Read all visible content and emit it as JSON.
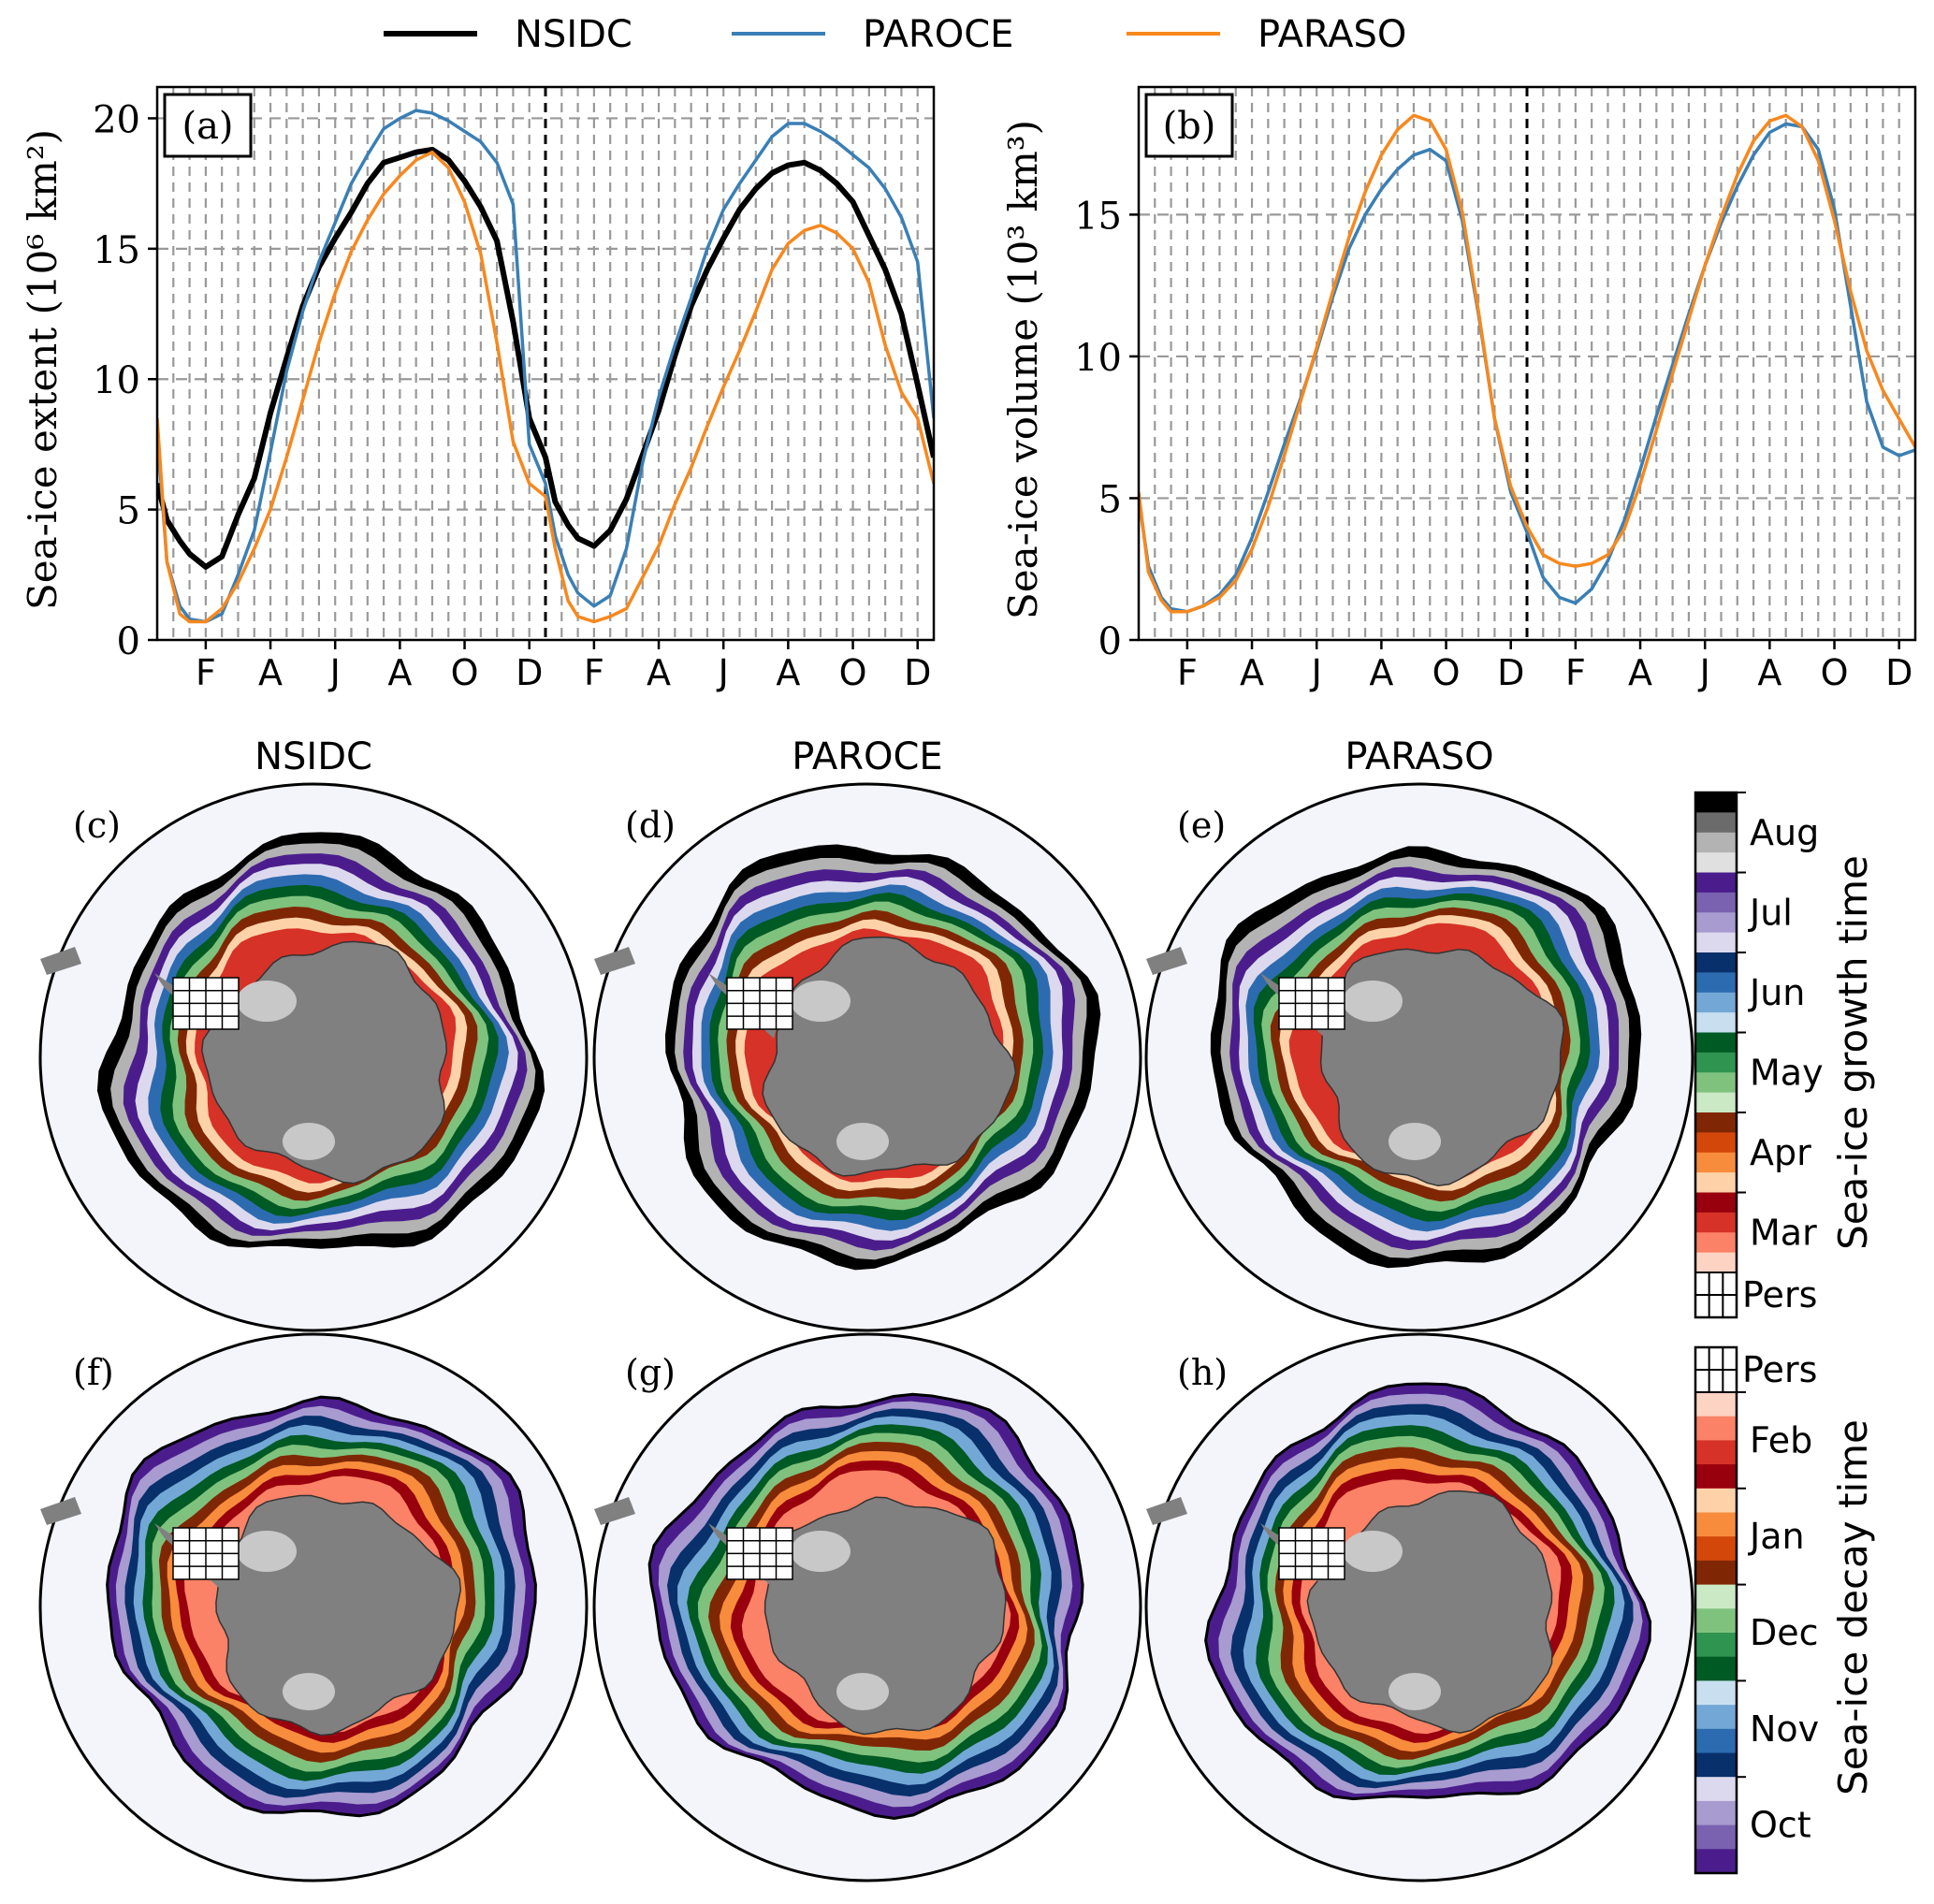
{
  "legend": [
    {
      "name": "NSIDC",
      "color": "#000000"
    },
    {
      "name": "PAROCE",
      "color": "#3a7fb5"
    },
    {
      "name": "PARASO",
      "color": "#f7881e"
    }
  ],
  "chart_data": [
    {
      "type": "line",
      "panel_label": "(a)",
      "ylabel": "Sea-ice extent (10⁶ km²)",
      "ylim": [
        0,
        21.2
      ],
      "yticks": [
        0,
        5,
        10,
        15,
        20
      ],
      "xlim": [
        0,
        24
      ],
      "xticks": [
        {
          "x": 1.5,
          "label": "F"
        },
        {
          "x": 3.5,
          "label": "A"
        },
        {
          "x": 5.5,
          "label": "J"
        },
        {
          "x": 7.5,
          "label": "A"
        },
        {
          "x": 9.5,
          "label": "O"
        },
        {
          "x": 11.5,
          "label": "D"
        },
        {
          "x": 13.5,
          "label": "F"
        },
        {
          "x": 15.5,
          "label": "A"
        },
        {
          "x": 17.5,
          "label": "J"
        },
        {
          "x": 19.5,
          "label": "A"
        },
        {
          "x": 21.5,
          "label": "O"
        },
        {
          "x": 23.5,
          "label": "D"
        }
      ],
      "grid": true,
      "year_divider": 12,
      "series": [
        {
          "name": "NSIDC",
          "x": [
            0,
            0.3,
            0.7,
            1,
            1.5,
            2,
            2.5,
            3,
            3.5,
            4,
            4.5,
            5,
            5.5,
            6,
            6.5,
            7,
            7.5,
            8,
            8.5,
            9,
            9.5,
            10,
            10.5,
            11,
            11.5,
            12,
            12.3,
            12.7,
            13,
            13.5,
            14,
            14.5,
            15,
            15.5,
            16,
            16.5,
            17,
            17.5,
            18,
            18.5,
            19,
            19.5,
            20,
            20.5,
            21,
            21.5,
            22,
            22.5,
            23,
            23.5,
            24
          ],
          "values": [
            6.0,
            4.6,
            3.8,
            3.3,
            2.8,
            3.2,
            4.8,
            6.2,
            8.7,
            10.8,
            12.8,
            14.3,
            15.4,
            16.4,
            17.5,
            18.3,
            18.5,
            18.7,
            18.8,
            18.4,
            17.6,
            16.6,
            15.3,
            12.2,
            8.5,
            7.0,
            5.3,
            4.4,
            3.9,
            3.6,
            4.2,
            5.4,
            7.1,
            8.8,
            10.9,
            12.8,
            14.2,
            15.4,
            16.5,
            17.3,
            17.9,
            18.2,
            18.3,
            18.0,
            17.5,
            16.8,
            15.5,
            14.2,
            12.5,
            9.8,
            7.0
          ]
        },
        {
          "name": "PAROCE",
          "x": [
            0,
            0.3,
            0.7,
            1,
            1.5,
            2,
            2.5,
            3,
            3.5,
            4,
            4.5,
            5,
            5.5,
            6,
            6.5,
            7,
            7.5,
            8,
            8.5,
            9,
            9.5,
            10,
            10.5,
            11,
            11.5,
            12,
            12.3,
            12.7,
            13,
            13.5,
            14,
            14.5,
            15,
            15.5,
            16,
            16.5,
            17,
            17.5,
            18,
            18.5,
            19,
            19.5,
            20,
            20.5,
            21,
            21.5,
            22,
            22.5,
            23,
            23.5,
            24
          ],
          "values": [
            8.0,
            3.0,
            1.3,
            0.8,
            0.7,
            1.0,
            2.5,
            4.2,
            7.2,
            10.3,
            12.6,
            14.5,
            16.0,
            17.5,
            18.6,
            19.6,
            20.0,
            20.3,
            20.2,
            19.9,
            19.5,
            19.1,
            18.3,
            16.7,
            7.5,
            6.0,
            4.0,
            2.5,
            1.8,
            1.3,
            1.7,
            3.5,
            6.8,
            9.3,
            11.3,
            13.1,
            15.0,
            16.5,
            17.5,
            18.4,
            19.3,
            19.8,
            19.8,
            19.5,
            19.1,
            18.6,
            18.1,
            17.3,
            16.2,
            14.5,
            8.5
          ]
        },
        {
          "name": "PARASO",
          "x": [
            0,
            0.3,
            0.7,
            1,
            1.5,
            2,
            2.5,
            3,
            3.5,
            4,
            4.5,
            5,
            5.5,
            6,
            6.5,
            7,
            7.5,
            8,
            8.5,
            9,
            9.5,
            10,
            10.5,
            11,
            11.5,
            12,
            12.3,
            12.7,
            13,
            13.5,
            14,
            14.5,
            15,
            15.5,
            16,
            16.5,
            17,
            17.5,
            18,
            18.5,
            19,
            19.5,
            20,
            20.5,
            21,
            21.5,
            22,
            22.5,
            23,
            23.5,
            24
          ],
          "values": [
            8.5,
            3.0,
            1.0,
            0.7,
            0.7,
            1.2,
            2.2,
            3.5,
            5.0,
            7.0,
            9.2,
            11.4,
            13.3,
            14.9,
            16.1,
            17.1,
            17.8,
            18.4,
            18.7,
            18.1,
            16.8,
            14.8,
            11.4,
            7.6,
            6.0,
            5.5,
            3.5,
            1.5,
            0.9,
            0.7,
            0.9,
            1.2,
            2.4,
            3.6,
            5.2,
            6.6,
            8.2,
            9.7,
            11.1,
            12.6,
            14.2,
            15.2,
            15.7,
            15.9,
            15.6,
            15.0,
            13.7,
            11.3,
            9.5,
            8.5,
            6.0
          ]
        }
      ]
    },
    {
      "type": "line",
      "panel_label": "(b)",
      "ylabel": "Sea-ice volume (10³ km³)",
      "ylim": [
        0,
        19.5
      ],
      "yticks": [
        0,
        5,
        10,
        15
      ],
      "xlim": [
        0,
        24
      ],
      "xticks": [
        {
          "x": 1.5,
          "label": "F"
        },
        {
          "x": 3.5,
          "label": "A"
        },
        {
          "x": 5.5,
          "label": "J"
        },
        {
          "x": 7.5,
          "label": "A"
        },
        {
          "x": 9.5,
          "label": "O"
        },
        {
          "x": 11.5,
          "label": "D"
        },
        {
          "x": 13.5,
          "label": "F"
        },
        {
          "x": 15.5,
          "label": "A"
        },
        {
          "x": 17.5,
          "label": "J"
        },
        {
          "x": 19.5,
          "label": "A"
        },
        {
          "x": 21.5,
          "label": "O"
        },
        {
          "x": 23.5,
          "label": "D"
        }
      ],
      "grid": true,
      "year_divider": 12,
      "series": [
        {
          "name": "PAROCE",
          "x": [
            0,
            0.3,
            0.7,
            1,
            1.5,
            2,
            2.5,
            3,
            3.5,
            4,
            4.5,
            5,
            5.5,
            6,
            6.5,
            7,
            7.5,
            8,
            8.5,
            9,
            9.5,
            10,
            10.5,
            11,
            11.5,
            12,
            12.5,
            13,
            13.5,
            14,
            14.5,
            15,
            15.5,
            16,
            16.5,
            17,
            17.5,
            18,
            18.5,
            19,
            19.5,
            20,
            20.5,
            21,
            21.5,
            22,
            22.5,
            23,
            23.5,
            24
          ],
          "values": [
            5.0,
            2.6,
            1.5,
            1.1,
            1.0,
            1.2,
            1.6,
            2.3,
            3.6,
            5.2,
            6.9,
            8.5,
            10.2,
            12.1,
            13.8,
            15.0,
            15.9,
            16.6,
            17.1,
            17.3,
            16.9,
            14.8,
            11.5,
            7.8,
            5.2,
            3.8,
            2.2,
            1.5,
            1.3,
            1.8,
            2.8,
            4.2,
            6.0,
            7.9,
            9.7,
            11.5,
            13.2,
            14.7,
            16.0,
            17.1,
            17.9,
            18.2,
            18.1,
            17.3,
            15.2,
            11.8,
            8.4,
            6.8,
            6.5,
            6.7
          ]
        },
        {
          "name": "PARASO",
          "x": [
            0,
            0.3,
            0.7,
            1,
            1.5,
            2,
            2.5,
            3,
            3.5,
            4,
            4.5,
            5,
            5.5,
            6,
            6.5,
            7,
            7.5,
            8,
            8.5,
            9,
            9.5,
            10,
            10.5,
            11,
            11.5,
            12,
            12.5,
            13,
            13.5,
            14,
            14.5,
            15,
            15.5,
            16,
            16.5,
            17,
            17.5,
            18,
            18.5,
            19,
            19.5,
            20,
            20.5,
            21,
            21.5,
            22,
            22.5,
            23,
            23.5,
            24
          ],
          "values": [
            5.2,
            2.4,
            1.4,
            1.0,
            1.0,
            1.2,
            1.5,
            2.1,
            3.2,
            4.7,
            6.5,
            8.4,
            10.3,
            12.3,
            14.2,
            15.8,
            17.1,
            18.0,
            18.5,
            18.3,
            17.3,
            15.1,
            11.6,
            7.8,
            5.4,
            4.0,
            3.0,
            2.7,
            2.6,
            2.7,
            3.0,
            3.9,
            5.5,
            7.4,
            9.4,
            11.3,
            13.2,
            14.9,
            16.4,
            17.6,
            18.3,
            18.5,
            18.1,
            16.9,
            14.8,
            12.3,
            10.2,
            8.8,
            7.8,
            6.8
          ]
        }
      ]
    }
  ],
  "maps": {
    "column_titles": [
      "NSIDC",
      "PAROCE",
      "PARASO"
    ],
    "panel_labels_top": [
      "(c)",
      "(d)",
      "(e)"
    ],
    "panel_labels_bottom": [
      "(f)",
      "(g)",
      "(h)"
    ]
  },
  "colorbars": {
    "growth": {
      "label": "Sea-ice growth time",
      "ticks": [
        "Aug",
        "Jul",
        "Jun",
        "May",
        "Apr",
        "Mar",
        "Pers"
      ],
      "colors": [
        "#000000",
        "#6b6b6b",
        "#b3b3b3",
        "#e0e0e0",
        "#4b1d8c",
        "#7a62b0",
        "#a89bd0",
        "#dcd9ee",
        "#08306b",
        "#2d6bb0",
        "#73a8d6",
        "#c9dff0",
        "#005a24",
        "#2f944f",
        "#7fc27e",
        "#cbe9c4",
        "#7f2704",
        "#d3470a",
        "#f88c3d",
        "#fdd2a8",
        "#99000d",
        "#d63227",
        "#fb8266",
        "#fdd3c3"
      ]
    },
    "decay": {
      "label": "Sea-ice decay time",
      "ticks": [
        "Pers",
        "Feb",
        "Jan",
        "Dec",
        "Nov",
        "Oct"
      ],
      "colors": [
        "#fdd3c3",
        "#fb8266",
        "#d63227",
        "#99000d",
        "#fdd2a8",
        "#f88c3d",
        "#d3470a",
        "#7f2704",
        "#cbe9c4",
        "#7fc27e",
        "#2f944f",
        "#005a24",
        "#c9dff0",
        "#73a8d6",
        "#2d6bb0",
        "#08306b",
        "#dcd9ee",
        "#a89bd0",
        "#7a62b0",
        "#4b1d8c"
      ]
    }
  }
}
